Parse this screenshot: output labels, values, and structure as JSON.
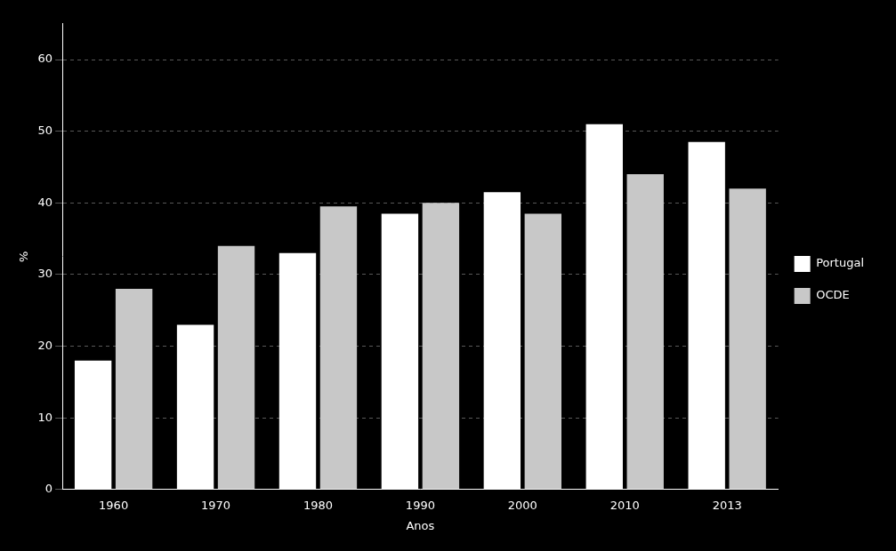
{
  "chart_data": {
    "type": "bar",
    "categories": [
      "1960",
      "1970",
      "1980",
      "1990",
      "2000",
      "2010",
      "2013"
    ],
    "series": [
      {
        "name": "Portugal",
        "color": "#ffffff",
        "values": [
          18,
          23,
          33,
          38.5,
          41.5,
          51,
          48.5
        ]
      },
      {
        "name": "OCDE",
        "color": "#c8c8c8",
        "values": [
          28,
          34,
          39.5,
          40,
          38.5,
          44,
          42
        ]
      }
    ],
    "xlabel": "Anos",
    "ylabel": "%",
    "ylim": [
      0,
      65
    ],
    "yticks": [
      0,
      10,
      20,
      30,
      40,
      50,
      60
    ],
    "grid": true,
    "legend": "right"
  }
}
